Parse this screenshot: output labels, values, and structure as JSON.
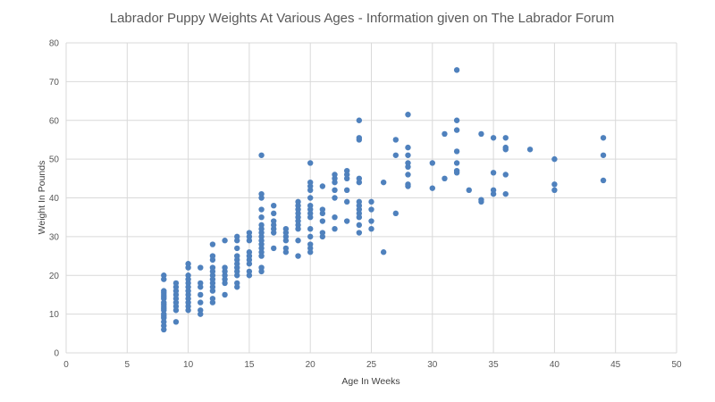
{
  "chart_data": {
    "type": "scatter",
    "title": "Labrador Puppy  Weights At Various Ages - Information given on The Labrador Forum",
    "xlabel": "Age In Weeks",
    "ylabel": "Weight In Pounds",
    "xlim": [
      0,
      50
    ],
    "ylim": [
      0,
      80
    ],
    "xticks": [
      0,
      5,
      10,
      15,
      20,
      25,
      30,
      35,
      40,
      45,
      50
    ],
    "yticks": [
      0,
      10,
      20,
      30,
      40,
      50,
      60,
      70,
      80
    ],
    "grid": true,
    "legend": "none",
    "color": "#4f81bd",
    "points_by_week": {
      "8": [
        6,
        7,
        8,
        9,
        9.5,
        10,
        11,
        11.5,
        12,
        12.5,
        13,
        14,
        14.5,
        15,
        15.5,
        16,
        19,
        20
      ],
      "9": [
        8,
        11,
        12,
        13,
        14,
        15,
        16,
        17,
        18
      ],
      "10": [
        11,
        12,
        13,
        14,
        15,
        16,
        17,
        18,
        19,
        20,
        22,
        23
      ],
      "11": [
        10,
        11,
        13,
        15,
        17,
        18,
        22
      ],
      "12": [
        13,
        14,
        16,
        17,
        18,
        19,
        20,
        21,
        22,
        24,
        25,
        28
      ],
      "13": [
        15,
        18,
        19,
        20,
        21,
        22,
        29
      ],
      "14": [
        17,
        18,
        20,
        21,
        22,
        23,
        24,
        25,
        27,
        29,
        30
      ],
      "15": [
        20,
        21,
        23,
        24,
        25,
        26,
        29,
        30,
        31
      ],
      "16": [
        21,
        22,
        25,
        26,
        27,
        28,
        29,
        30,
        31,
        32,
        33,
        35,
        37,
        40,
        41,
        51
      ],
      "17": [
        27,
        31,
        32,
        33,
        34,
        36,
        38
      ],
      "18": [
        26,
        27,
        29,
        30,
        31,
        32
      ],
      "19": [
        25,
        29,
        32,
        33,
        34,
        35,
        36,
        37,
        38,
        39
      ],
      "20": [
        26,
        27,
        28,
        30,
        32,
        35,
        36,
        37,
        38,
        40,
        42,
        43,
        44,
        49
      ],
      "21": [
        30,
        31,
        34,
        36,
        37,
        43
      ],
      "22": [
        32,
        35,
        40,
        42,
        44,
        45,
        46
      ],
      "23": [
        34,
        39,
        42,
        45,
        46,
        47
      ],
      "24": [
        31,
        33,
        35,
        36,
        37,
        38,
        39,
        44,
        45,
        55,
        55.5,
        60
      ],
      "25": [
        32,
        34,
        37,
        39
      ],
      "26": [
        26,
        44
      ],
      "27": [
        36,
        51,
        55
      ],
      "28": [
        43,
        43.5,
        46,
        48,
        49,
        51,
        53,
        61.5
      ],
      "30": [
        42.5,
        49
      ],
      "31": [
        45,
        56.5
      ],
      "32": [
        46.5,
        47,
        49,
        52,
        57.5,
        60,
        73
      ],
      "33": [
        42
      ],
      "34": [
        39,
        39.5,
        56.5
      ],
      "35": [
        41,
        42,
        46.5,
        55.5
      ],
      "36": [
        41,
        46,
        52.5,
        53,
        55.5
      ],
      "38": [
        52.5
      ],
      "40": [
        42,
        43.5,
        50
      ],
      "44": [
        44.5,
        51,
        55.5
      ]
    }
  }
}
